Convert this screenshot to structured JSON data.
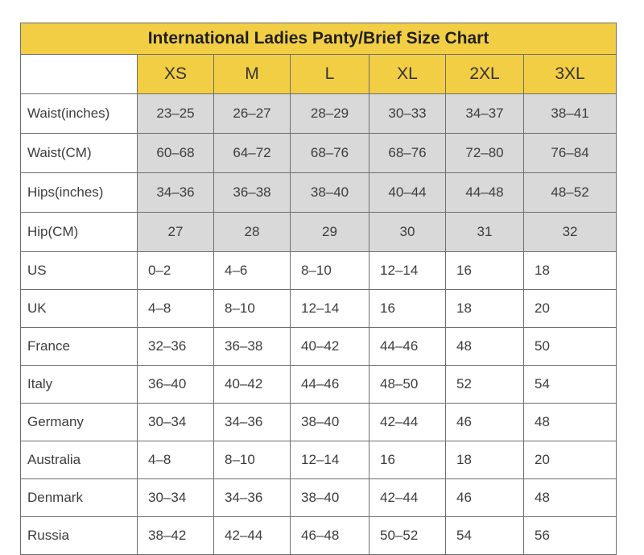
{
  "colors": {
    "header_yellow": "#F2CE44",
    "measure_gray": "#D9D9D9",
    "border": "#6e6e6e",
    "text": "#3d3d3d"
  },
  "table": {
    "title": "International Ladies Panty/Brief Size Chart",
    "corner_label": "",
    "size_headers": [
      "XS",
      "M",
      "L",
      "XL",
      "2XL",
      "3XL"
    ],
    "measurement_rows": [
      {
        "label": "Waist(inches)",
        "values": [
          "23–25",
          "26–27",
          "28–29",
          "30–33",
          "34–37",
          "38–41"
        ]
      },
      {
        "label": "Waist(CM)",
        "values": [
          "60–68",
          "64–72",
          "68–76",
          "68–76",
          "72–80",
          "76–84"
        ]
      },
      {
        "label": "Hips(inches)",
        "values": [
          "34–36",
          "36–38",
          "38–40",
          "40–44",
          "44–48",
          "48–52"
        ]
      },
      {
        "label": "Hip(CM)",
        "values": [
          "27",
          "28",
          "29",
          "30",
          "31",
          "32"
        ]
      }
    ],
    "country_rows": [
      {
        "label": "US",
        "values": [
          "0–2",
          "4–6",
          "8–10",
          "12–14",
          "16",
          "18"
        ]
      },
      {
        "label": "UK",
        "values": [
          "4–8",
          "8–10",
          "12–14",
          "16",
          "18",
          "20"
        ]
      },
      {
        "label": "France",
        "values": [
          "32–36",
          "36–38",
          "40–42",
          "44–46",
          "48",
          "50"
        ]
      },
      {
        "label": "Italy",
        "values": [
          "36–40",
          "40–42",
          "44–46",
          "48–50",
          "52",
          "54"
        ]
      },
      {
        "label": "Germany",
        "values": [
          "30–34",
          "34–36",
          "38–40",
          "42–44",
          "46",
          "48"
        ]
      },
      {
        "label": "Australia",
        "values": [
          "4–8",
          "8–10",
          "12–14",
          "16",
          "18",
          "20"
        ]
      },
      {
        "label": "Denmark",
        "values": [
          "30–34",
          "34–36",
          "38–40",
          "42–44",
          "46",
          "48"
        ]
      },
      {
        "label": "Russia",
        "values": [
          "38–42",
          "42–44",
          "46–48",
          "50–52",
          "54",
          "56"
        ]
      }
    ]
  },
  "chart_data": {
    "type": "table",
    "title": "International Ladies Panty/Brief Size Chart",
    "columns": [
      "",
      "XS",
      "M",
      "L",
      "XL",
      "2XL",
      "3XL"
    ],
    "rows": [
      [
        "Waist(inches)",
        "23–25",
        "26–27",
        "28–29",
        "30–33",
        "34–37",
        "38–41"
      ],
      [
        "Waist(CM)",
        "60–68",
        "64–72",
        "68–76",
        "68–76",
        "72–80",
        "76–84"
      ],
      [
        "Hips(inches)",
        "34–36",
        "36–38",
        "38–40",
        "40–44",
        "44–48",
        "48–52"
      ],
      [
        "Hip(CM)",
        "27",
        "28",
        "29",
        "30",
        "31",
        "32"
      ],
      [
        "US",
        "0–2",
        "4–6",
        "8–10",
        "12–14",
        "16",
        "18"
      ],
      [
        "UK",
        "4–8",
        "8–10",
        "12–14",
        "16",
        "18",
        "20"
      ],
      [
        "France",
        "32–36",
        "36–38",
        "40–42",
        "44–46",
        "48",
        "50"
      ],
      [
        "Italy",
        "36–40",
        "40–42",
        "44–46",
        "48–50",
        "52",
        "54"
      ],
      [
        "Germany",
        "30–34",
        "34–36",
        "38–40",
        "42–44",
        "46",
        "48"
      ],
      [
        "Australia",
        "4–8",
        "8–10",
        "12–14",
        "16",
        "18",
        "20"
      ],
      [
        "Denmark",
        "30–34",
        "34–36",
        "38–40",
        "42–44",
        "46",
        "48"
      ],
      [
        "Russia",
        "38–42",
        "42–44",
        "46–48",
        "50–52",
        "54",
        "56"
      ]
    ],
    "layout": {
      "header_fill": "#F2CE44",
      "measurement_section_fill": "#D9D9D9",
      "grid": true
    }
  }
}
